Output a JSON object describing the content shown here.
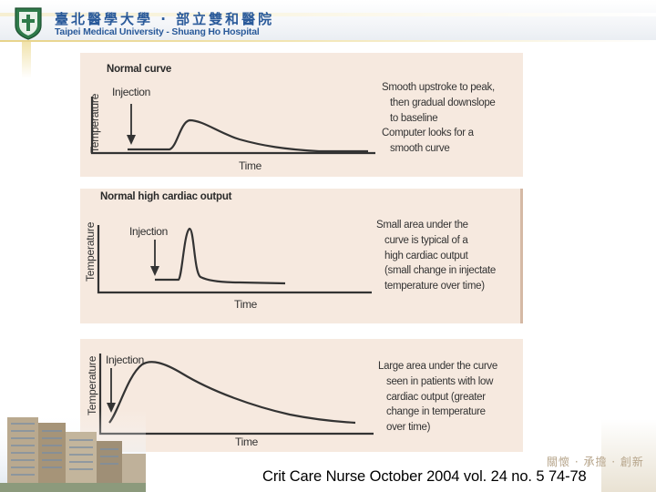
{
  "header": {
    "university_cn": "臺北醫學大學 · 部立雙和醫院",
    "university_en": "Taipei Medical University - Shuang Ho Hospital",
    "motto": "關懷 · 承擔 · 創新"
  },
  "panels": [
    {
      "title": "Normal curve",
      "injection_label": "Injection",
      "y_label": "Temperature",
      "x_label": "Time",
      "description": [
        "Smooth upstroke to peak,",
        "then gradual downslope",
        "to baseline",
        "Computer looks for a",
        "smooth curve"
      ]
    },
    {
      "title": "Normal high cardiac output",
      "injection_label": "Injection",
      "y_label": "Temperature",
      "x_label": "Time",
      "description": [
        "Small area under the",
        "curve is typical of a",
        "high cardiac output",
        "(small change in injectate",
        "temperature over time)"
      ]
    },
    {
      "title": "",
      "injection_label": "Injection",
      "y_label": "Temperature",
      "x_label": "Time",
      "description": [
        "Large area under the curve",
        "seen in patients with low",
        "cardiac output (greater",
        "change in temperature",
        "over time)"
      ]
    }
  ],
  "citation": "Crit Care Nurse October 2004 vol. 24 no. 5 74-78"
}
